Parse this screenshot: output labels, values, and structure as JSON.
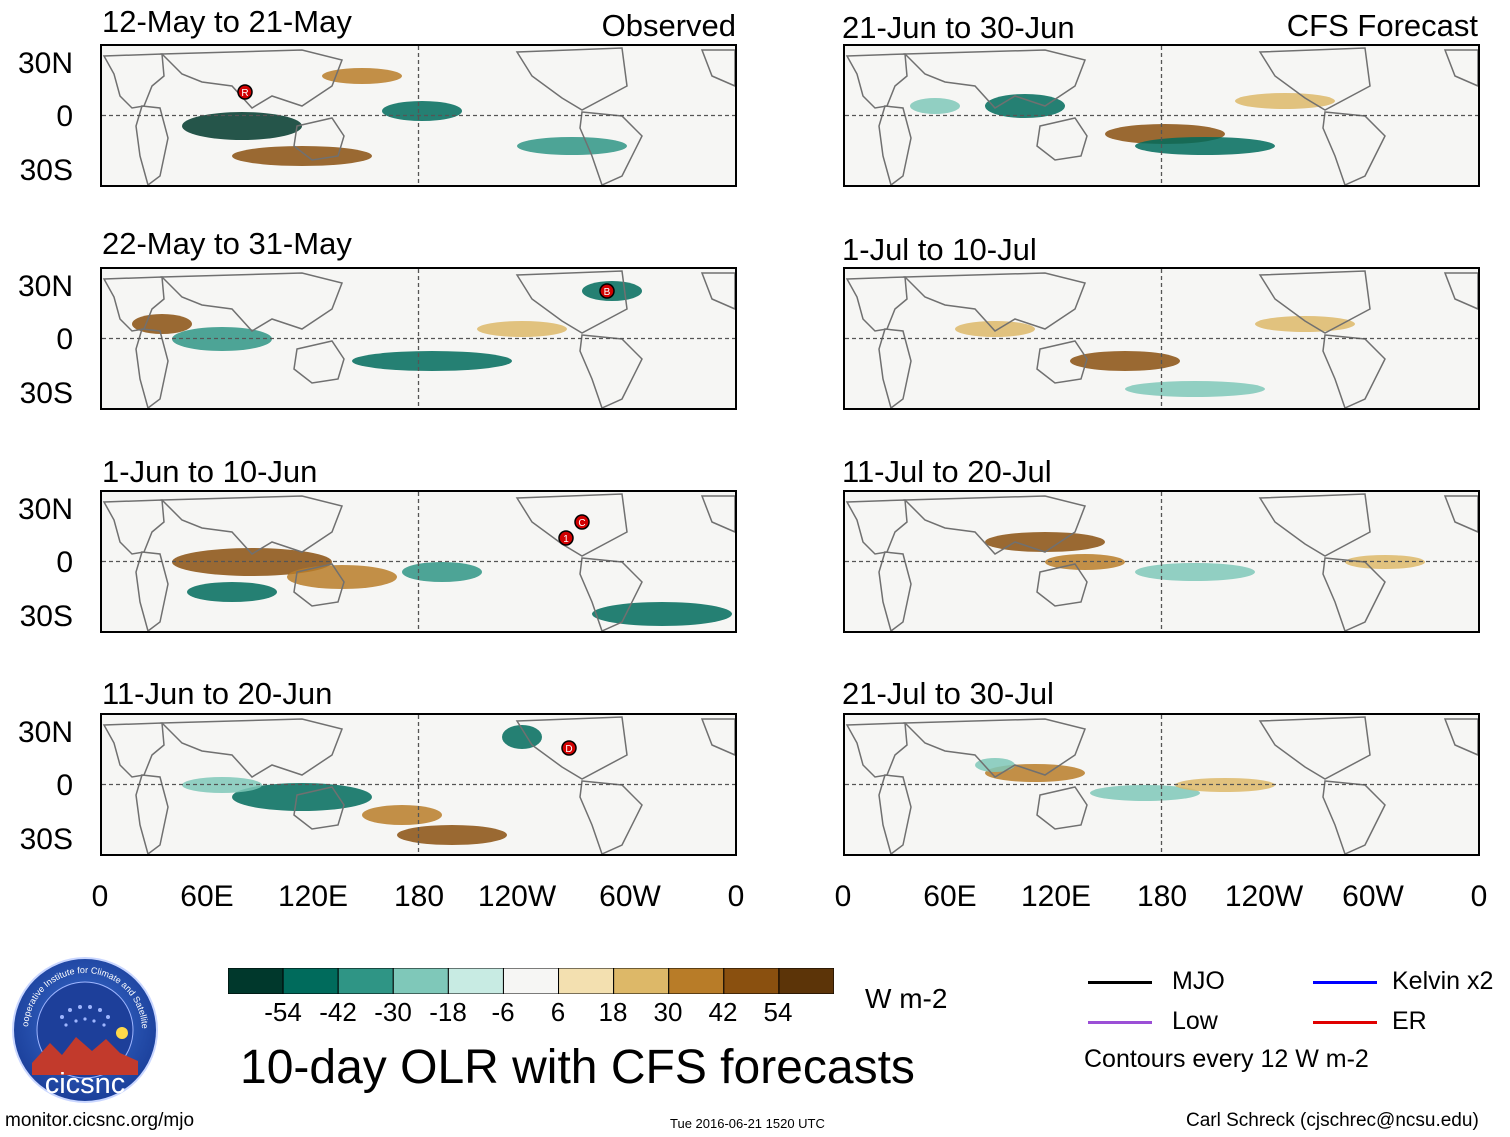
{
  "header": {
    "left_column_label": "Observed",
    "right_column_label": "CFS Forecast"
  },
  "panels": {
    "observed": [
      {
        "title": "12-May to 21-May",
        "markers": [
          "R"
        ]
      },
      {
        "title": "22-May to 31-May",
        "markers": [
          "B"
        ]
      },
      {
        "title": "1-Jun to 10-Jun",
        "markers": [
          "1",
          "C"
        ]
      },
      {
        "title": "11-Jun to 20-Jun",
        "markers": [
          "D"
        ]
      }
    ],
    "forecast": [
      {
        "title": "21-Jun to 30-Jun"
      },
      {
        "title": "1-Jul to 10-Jul"
      },
      {
        "title": "11-Jul to 20-Jul"
      },
      {
        "title": "21-Jul to 30-Jul"
      }
    ]
  },
  "axes": {
    "lat_labels": [
      "30N",
      "0",
      "30S"
    ],
    "lon_labels": [
      "0",
      "60E",
      "120E",
      "180",
      "120W",
      "60W",
      "0"
    ]
  },
  "colorbar": {
    "tick_labels": [
      "-54",
      "-42",
      "-30",
      "-18",
      "-6",
      "6",
      "18",
      "30",
      "42",
      "54"
    ],
    "units": "W m-2",
    "colors": [
      "#00382c",
      "#006b5c",
      "#2f9585",
      "#7fc8b9",
      "#c8ebe3",
      "#f6f6f4",
      "#f3e0b0",
      "#ddb868",
      "#b87c28",
      "#8a500f",
      "#5c3408"
    ]
  },
  "legend": {
    "items": [
      {
        "label": "MJO",
        "color": "#000000"
      },
      {
        "label": "Kelvin x2",
        "color": "#0000ff"
      },
      {
        "label": "Low",
        "color": "#9b4fd6"
      },
      {
        "label": "ER",
        "color": "#e00000"
      }
    ],
    "note": "Contours every 12 W m-2"
  },
  "logo": {
    "text": "cicsnc",
    "ring_text": "Cooperative Institute for Climate and Satellites"
  },
  "footer": {
    "title": "10-day OLR with CFS forecasts",
    "left": "monitor.cicsnc.org/mjo",
    "center": "Tue 2016-06-21 1520 UTC",
    "right": "Carl Schreck (cjschrec@ncsu.edu)"
  }
}
